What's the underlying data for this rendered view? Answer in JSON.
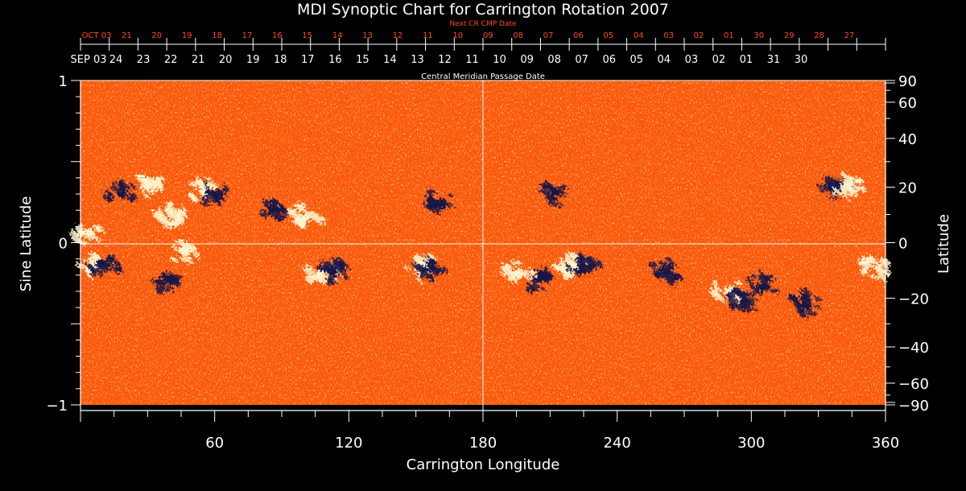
{
  "chart_data": {
    "type": "heatmap",
    "title": "MDI Synoptic Chart for Carrington Rotation 2007",
    "xlabel": "Carrington Longitude",
    "ylabel_left": "Sine Latitude",
    "ylabel_right": "Latitude",
    "xlim": [
      0,
      360
    ],
    "ylim": [
      -1,
      1
    ],
    "x_ticks": [
      60,
      120,
      180,
      240,
      300,
      360
    ],
    "y_ticks_left": [
      {
        "value": 1,
        "label": "1"
      },
      {
        "value": 0,
        "label": "0"
      },
      {
        "value": -1,
        "label": "−1"
      }
    ],
    "y_ticks_right": [
      {
        "lat": 90,
        "label": "90"
      },
      {
        "lat": 60,
        "label": "60"
      },
      {
        "lat": 40,
        "label": "40"
      },
      {
        "lat": 20,
        "label": "20"
      },
      {
        "lat": 0,
        "label": "0"
      },
      {
        "lat": -20,
        "label": "−20"
      },
      {
        "lat": -40,
        "label": "−40"
      },
      {
        "lat": -60,
        "label": "−60"
      },
      {
        "lat": -90,
        "label": "−90"
      }
    ],
    "cmp_axis_label": "Central Meridian Passage Date",
    "cmp_dates": [
      "SEP 03",
      "24",
      "23",
      "22",
      "21",
      "20",
      "19",
      "18",
      "17",
      "16",
      "15",
      "14",
      "13",
      "12",
      "11",
      "10",
      "09",
      "08",
      "07",
      "06",
      "05",
      "04",
      "03",
      "02",
      "01",
      "31",
      "30"
    ],
    "next_cr_axis_label": "Next CR CMP Date",
    "next_cr_dates": [
      "OCT 03",
      "21",
      "20",
      "19",
      "18",
      "17",
      "16",
      "15",
      "14",
      "13",
      "12",
      "11",
      "10",
      "09",
      "08",
      "07",
      "06",
      "05",
      "04",
      "03",
      "02",
      "01",
      "30",
      "29",
      "28",
      "27"
    ],
    "grid_lines": {
      "longitude": 180,
      "sine_latitude": 0
    },
    "colors": {
      "background_field": "#ff5a0a",
      "positive_polarity": "#fff7d0",
      "negative_polarity": "#141448",
      "axes": "#ffffff",
      "next_cr_text": "#ff4a1a"
    },
    "active_regions": [
      {
        "lon": 2,
        "sinlat": 0.06,
        "polarity": "positive"
      },
      {
        "lon": 5,
        "sinlat": -0.14,
        "polarity": "positive"
      },
      {
        "lon": 10,
        "sinlat": -0.14,
        "polarity": "negative"
      },
      {
        "lon": 18,
        "sinlat": 0.3,
        "polarity": "negative"
      },
      {
        "lon": 30,
        "sinlat": 0.36,
        "polarity": "positive"
      },
      {
        "lon": 38,
        "sinlat": -0.22,
        "polarity": "negative"
      },
      {
        "lon": 40,
        "sinlat": 0.17,
        "polarity": "positive"
      },
      {
        "lon": 46,
        "sinlat": -0.05,
        "polarity": "positive"
      },
      {
        "lon": 55,
        "sinlat": 0.32,
        "polarity": "positive"
      },
      {
        "lon": 60,
        "sinlat": 0.3,
        "polarity": "negative"
      },
      {
        "lon": 88,
        "sinlat": 0.2,
        "polarity": "negative"
      },
      {
        "lon": 100,
        "sinlat": 0.15,
        "polarity": "positive"
      },
      {
        "lon": 108,
        "sinlat": -0.18,
        "polarity": "positive"
      },
      {
        "lon": 113,
        "sinlat": -0.18,
        "polarity": "negative"
      },
      {
        "lon": 152,
        "sinlat": -0.15,
        "polarity": "positive"
      },
      {
        "lon": 156,
        "sinlat": -0.15,
        "polarity": "negative"
      },
      {
        "lon": 160,
        "sinlat": 0.24,
        "polarity": "negative"
      },
      {
        "lon": 196,
        "sinlat": -0.2,
        "polarity": "positive"
      },
      {
        "lon": 205,
        "sinlat": -0.22,
        "polarity": "negative"
      },
      {
        "lon": 212,
        "sinlat": 0.3,
        "polarity": "negative"
      },
      {
        "lon": 219,
        "sinlat": -0.13,
        "polarity": "positive"
      },
      {
        "lon": 224,
        "sinlat": -0.12,
        "polarity": "negative"
      },
      {
        "lon": 262,
        "sinlat": -0.18,
        "polarity": "negative"
      },
      {
        "lon": 290,
        "sinlat": -0.3,
        "polarity": "positive"
      },
      {
        "lon": 297,
        "sinlat": -0.36,
        "polarity": "negative"
      },
      {
        "lon": 304,
        "sinlat": -0.27,
        "polarity": "negative"
      },
      {
        "lon": 323,
        "sinlat": -0.38,
        "polarity": "negative"
      },
      {
        "lon": 338,
        "sinlat": 0.35,
        "polarity": "negative"
      },
      {
        "lon": 344,
        "sinlat": 0.35,
        "polarity": "positive"
      },
      {
        "lon": 356,
        "sinlat": -0.15,
        "polarity": "positive"
      }
    ]
  }
}
